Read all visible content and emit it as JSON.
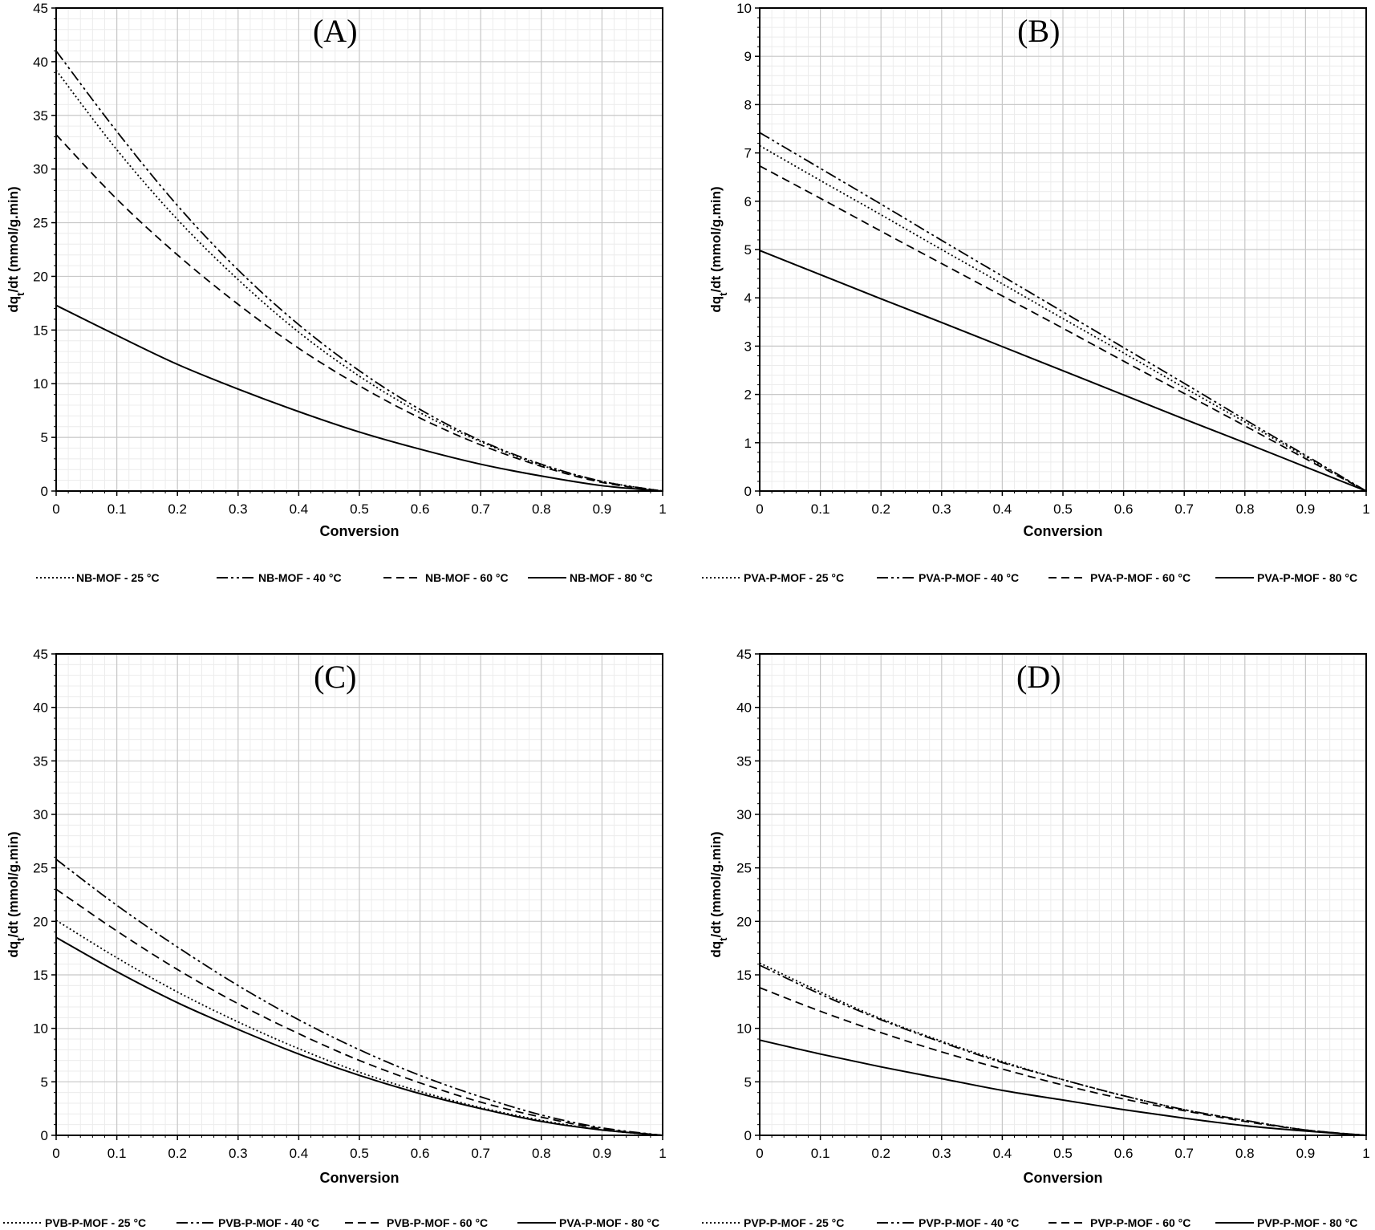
{
  "chart_data": [
    {
      "panel_label": "(A)",
      "type": "line",
      "xlabel": "Conversion",
      "ylabel": "dq_t/dt (mmol/g.min)",
      "xlim": [
        0,
        1
      ],
      "ylim": [
        0,
        45
      ],
      "xticks": [
        "0",
        "0.1",
        "0.2",
        "0.3",
        "0.4",
        "0.5",
        "0.6",
        "0.7",
        "0.8",
        "0.9",
        "1"
      ],
      "yticks": [
        "0",
        "5",
        "10",
        "15",
        "20",
        "25",
        "30",
        "35",
        "40",
        "45"
      ],
      "grid": true,
      "legend_position": "bottom",
      "x": [
        0,
        0.1,
        0.2,
        0.3,
        0.4,
        0.5,
        0.6,
        0.7,
        0.8,
        0.9,
        1
      ],
      "series": [
        {
          "name": "NB-MOF - 25 °C",
          "style": "dotted",
          "values": [
            39.2,
            31.8,
            25.3,
            19.7,
            14.8,
            10.7,
            7.3,
            4.6,
            2.4,
            0.9,
            0
          ]
        },
        {
          "name": "NB-MOF - 40 °C",
          "style": "dashdot",
          "values": [
            41.0,
            33.5,
            26.6,
            20.6,
            15.5,
            11.2,
            7.6,
            4.7,
            2.5,
            0.9,
            0
          ]
        },
        {
          "name": "NB-MOF - 60 °C",
          "style": "dashed",
          "values": [
            33.2,
            27.2,
            22.0,
            17.4,
            13.3,
            9.8,
            6.8,
            4.3,
            2.3,
            0.8,
            0
          ]
        },
        {
          "name": "NB-MOF - 80  °C",
          "style": "solid",
          "values": [
            17.3,
            14.5,
            11.8,
            9.5,
            7.4,
            5.5,
            3.9,
            2.5,
            1.4,
            0.5,
            0
          ]
        }
      ]
    },
    {
      "panel_label": "(B)",
      "type": "line",
      "xlabel": "Conversion",
      "ylabel": "dq_t/dt (mmol/g.min)",
      "xlim": [
        0,
        1
      ],
      "ylim": [
        0,
        10
      ],
      "xticks": [
        "0",
        "0.1",
        "0.2",
        "0.3",
        "0.4",
        "0.5",
        "0.6",
        "0.7",
        "0.8",
        "0.9",
        "1"
      ],
      "yticks": [
        "0",
        "1",
        "2",
        "3",
        "4",
        "5",
        "6",
        "7",
        "8",
        "9",
        "10"
      ],
      "grid": true,
      "legend_position": "bottom",
      "x": [
        0,
        0.1,
        0.2,
        0.3,
        0.4,
        0.5,
        0.6,
        0.7,
        0.8,
        0.9,
        1
      ],
      "series": [
        {
          "name": "PVA-P-MOF - 25 °C",
          "style": "dotted",
          "values": [
            7.15,
            6.43,
            5.72,
            5.0,
            4.29,
            3.57,
            2.86,
            2.14,
            1.43,
            0.71,
            0
          ]
        },
        {
          "name": "PVA-P-MOF - 40 °C",
          "style": "dashdot",
          "values": [
            7.42,
            6.68,
            5.94,
            5.19,
            4.45,
            3.71,
            2.97,
            2.23,
            1.48,
            0.74,
            0
          ]
        },
        {
          "name": "PVA-P-MOF - 60 °C",
          "style": "dashed",
          "values": [
            6.73,
            6.06,
            5.38,
            4.71,
            4.04,
            3.37,
            2.69,
            2.02,
            1.35,
            0.67,
            0
          ]
        },
        {
          "name": "PVA-P-MOF - 80 °C",
          "style": "solid",
          "values": [
            4.98,
            4.48,
            3.98,
            3.49,
            2.99,
            2.49,
            1.99,
            1.49,
            1.0,
            0.5,
            0
          ]
        }
      ]
    },
    {
      "panel_label": "(C)",
      "type": "line",
      "xlabel": "Conversion",
      "ylabel": "dq_t/dt (mmol/g.min)",
      "xlim": [
        0,
        1
      ],
      "ylim": [
        0,
        45
      ],
      "xticks": [
        "0",
        "0.1",
        "0.2",
        "0.3",
        "0.4",
        "0.5",
        "0.6",
        "0.7",
        "0.8",
        "0.9",
        "1"
      ],
      "yticks": [
        "0",
        "5",
        "10",
        "15",
        "20",
        "25",
        "30",
        "35",
        "40",
        "45"
      ],
      "grid": true,
      "legend_position": "bottom",
      "x": [
        0,
        0.1,
        0.2,
        0.3,
        0.4,
        0.5,
        0.6,
        0.7,
        0.8,
        0.9,
        1
      ],
      "series": [
        {
          "name": "PVB-P-MOF - 25 °C",
          "style": "dotted",
          "values": [
            20.1,
            16.6,
            13.4,
            10.6,
            8.1,
            5.9,
            4.1,
            2.6,
            1.4,
            0.5,
            0
          ]
        },
        {
          "name": "PVB-P-MOF - 40 °C",
          "style": "dashdot",
          "values": [
            25.8,
            21.5,
            17.6,
            14.0,
            10.8,
            8.0,
            5.6,
            3.6,
            1.9,
            0.7,
            0
          ]
        },
        {
          "name": "PVB-P-MOF - 60 °C",
          "style": "dashed",
          "values": [
            23.0,
            19.1,
            15.5,
            12.3,
            9.5,
            7.0,
            4.9,
            3.1,
            1.7,
            0.6,
            0
          ]
        },
        {
          "name": "PVA-P-MOF - 80 °C",
          "style": "solid",
          "values": [
            18.5,
            15.3,
            12.4,
            9.9,
            7.6,
            5.6,
            3.9,
            2.5,
            1.3,
            0.5,
            0
          ]
        }
      ]
    },
    {
      "panel_label": "(D)",
      "type": "line",
      "xlabel": "Conversion",
      "ylabel": "dq_t/dt (mmol/g.min)",
      "xlim": [
        0,
        1
      ],
      "ylim": [
        0,
        45
      ],
      "xticks": [
        "0",
        "0.1",
        "0.2",
        "0.3",
        "0.4",
        "0.5",
        "0.6",
        "0.7",
        "0.8",
        "0.9",
        "1"
      ],
      "yticks": [
        "0",
        "5",
        "10",
        "15",
        "20",
        "25",
        "30",
        "35",
        "40",
        "45"
      ],
      "grid": true,
      "legend_position": "bottom",
      "x": [
        0,
        0.1,
        0.2,
        0.3,
        0.4,
        0.5,
        0.6,
        0.7,
        0.8,
        0.9,
        1
      ],
      "series": [
        {
          "name": "PVP-P-MOF - 25 °C",
          "style": "dotted",
          "values": [
            16.1,
            13.4,
            10.9,
            8.8,
            6.9,
            5.2,
            3.7,
            2.4,
            1.4,
            0.5,
            0
          ]
        },
        {
          "name": "PVP-P-MOF - 40 °C",
          "style": "dashdot",
          "values": [
            15.9,
            13.2,
            10.8,
            8.7,
            6.8,
            5.2,
            3.7,
            2.4,
            1.4,
            0.5,
            0
          ]
        },
        {
          "name": "PVP-P-MOF - 60 °C",
          "style": "dashed",
          "values": [
            13.8,
            11.6,
            9.6,
            7.8,
            6.2,
            4.7,
            3.4,
            2.3,
            1.3,
            0.5,
            0
          ]
        },
        {
          "name": "PVP-P-MOF - 80 °C",
          "style": "solid",
          "values": [
            8.9,
            7.6,
            6.4,
            5.3,
            4.2,
            3.3,
            2.4,
            1.6,
            0.9,
            0.4,
            0
          ]
        }
      ]
    }
  ]
}
